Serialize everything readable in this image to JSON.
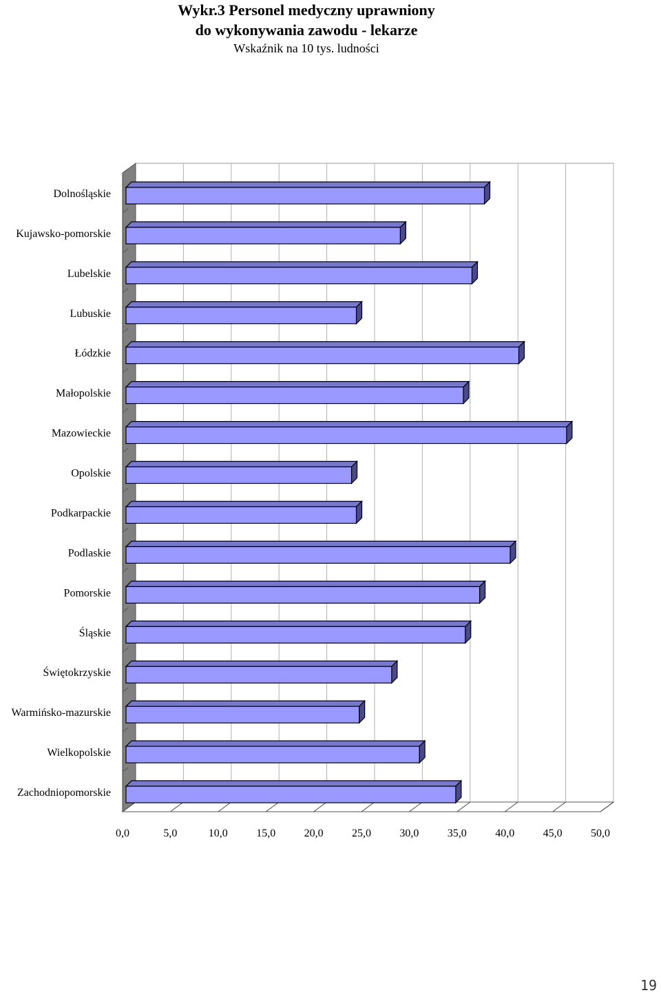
{
  "chart_data": {
    "type": "bar",
    "orientation": "horizontal",
    "title_line1": "Wykr.3 Personel medyczny uprawniony",
    "title_line2": "do wykonywania zawodu - lekarze",
    "subtitle": "Wskaźnik na 10 tys. ludności",
    "categories": [
      "Dolnośląskie",
      "Kujawsko-pomorskie",
      "Lubelskie",
      "Lubuskie",
      "Łódzkie",
      "Małopolskie",
      "Mazowieckie",
      "Opolskie",
      "Podkarpackie",
      "Podlaskie",
      "Pomorskie",
      "Śląskie",
      "Świętokrzyskie",
      "Warmińsko-mazurskie",
      "Wielkopolskie",
      "Zachodniopomorskie"
    ],
    "values": [
      37.5,
      28.7,
      36.2,
      24.1,
      41.1,
      35.3,
      46.1,
      23.6,
      24.1,
      40.2,
      37.0,
      35.5,
      27.8,
      24.4,
      30.7,
      34.5
    ],
    "xlim": [
      0,
      50
    ],
    "xticks": [
      "0,0",
      "5,0",
      "10,0",
      "15,0",
      "20,0",
      "25,0",
      "30,0",
      "35,0",
      "40,0",
      "45,0",
      "50,0"
    ],
    "grid": true,
    "bar_color": "#9999ff",
    "bar_top_color": "#7777cc",
    "bar_side_color": "#4a4a8a",
    "wall_color": "#808080"
  },
  "page_number": "19"
}
